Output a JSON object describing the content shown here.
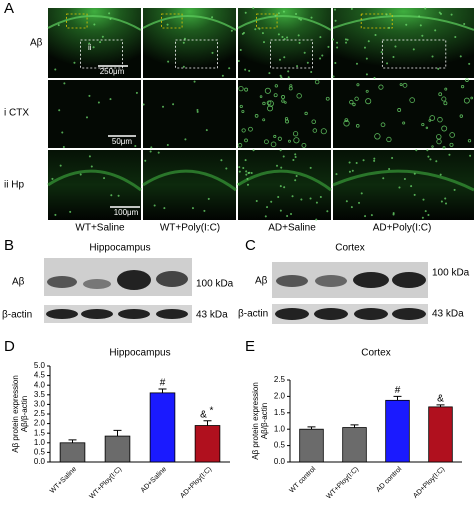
{
  "panel_a": {
    "label": "A",
    "row_labels": [
      "Aβ",
      "i CTX",
      "ii Hp"
    ],
    "scale_bars": [
      "250μm",
      "50μm",
      "100μm"
    ],
    "inset_label": "ii",
    "column_labels": [
      "WT+Saline",
      "WT+Poly(I:C)",
      "AD+Saline",
      "AD+Poly(I:C)"
    ]
  },
  "panel_b": {
    "label": "B",
    "title": "Hippocampus",
    "bands": [
      "Aβ",
      "β-actin"
    ],
    "sizes": [
      "100 kDa",
      "43 kDa"
    ]
  },
  "panel_c": {
    "label": "C",
    "title": "Cortex",
    "bands": [
      "Aβ",
      "β-actin"
    ],
    "sizes": [
      "100 kDa",
      "43 kDa"
    ]
  },
  "chart_data": [
    {
      "type": "bar",
      "panel_label": "D",
      "title": "Hippocampus",
      "y_label": [
        "Aβ protein expression",
        "Aβ/β-actin"
      ],
      "categories": [
        "WT+Saline",
        "WT+Ploy(I:C)",
        "AD+Saline",
        "AD+Ploy(I:C)"
      ],
      "values": [
        1.0,
        1.35,
        3.6,
        1.9
      ],
      "errors": [
        0.15,
        0.3,
        0.2,
        0.25
      ],
      "colors": [
        "#6b6b6b",
        "#6b6b6b",
        "#1a1aff",
        "#b0101e"
      ],
      "annotations": [
        null,
        null,
        [
          "#"
        ],
        [
          "&",
          "*"
        ]
      ],
      "ylim": [
        0,
        5
      ],
      "yticks": [
        {
          "value": 0,
          "label": "0.0"
        },
        {
          "value": 0.5,
          "label": "0.5"
        },
        {
          "value": 1,
          "label": "1.0"
        },
        {
          "value": 1.5,
          "label": "1.5"
        },
        {
          "value": 2,
          "label": "2.0"
        },
        {
          "value": 2.5,
          "label": "2.5"
        },
        {
          "value": 3,
          "label": "3.0"
        },
        {
          "value": 3.5,
          "label": "3.5"
        },
        {
          "value": 4,
          "label": "4.0"
        },
        {
          "value": 4.5,
          "label": "4.5"
        },
        {
          "value": 5,
          "label": "5.0"
        }
      ]
    },
    {
      "type": "bar",
      "panel_label": "E",
      "title": "Cortex",
      "y_label": [
        "Aβ protein expression",
        "Aβ/β-actin"
      ],
      "categories": [
        "WT control",
        "WT+Ploy(I:C)",
        "AD control",
        "AD+Ploy(I:C)"
      ],
      "values": [
        1.0,
        1.05,
        1.88,
        1.68
      ],
      "errors": [
        0.07,
        0.08,
        0.12,
        0.06
      ],
      "colors": [
        "#6b6b6b",
        "#6b6b6b",
        "#1a1aff",
        "#b0101e"
      ],
      "annotations": [
        null,
        null,
        [
          "#"
        ],
        [
          "&"
        ]
      ],
      "ylim": [
        0,
        2.5
      ],
      "yticks": [
        {
          "value": 0,
          "label": "0.0"
        },
        {
          "value": 0.5,
          "label": "0.5"
        },
        {
          "value": 1,
          "label": "1.0"
        },
        {
          "value": 1.5,
          "label": "1.5"
        },
        {
          "value": 2,
          "label": "2.0"
        },
        {
          "value": 2.5,
          "label": "2.5"
        }
      ]
    }
  ]
}
